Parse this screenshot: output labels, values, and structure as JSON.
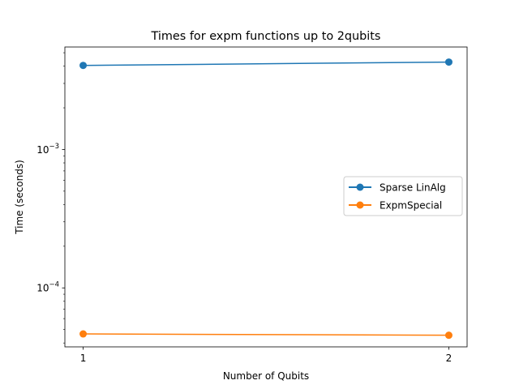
{
  "chart_data": {
    "type": "line",
    "title": "Times for expm functions up to 2qubits",
    "xlabel": "Number of Qubits",
    "ylabel": "Time (seconds)",
    "x": [
      1,
      2
    ],
    "x_ticks": [
      1,
      2
    ],
    "x_tick_labels": [
      "1",
      "2"
    ],
    "xlim": [
      0.95,
      2.05
    ],
    "y_scale": "log",
    "ylim": [
      3.75e-05,
      0.0055
    ],
    "y_ticks": [
      0.0001,
      0.001
    ],
    "y_tick_labels": [
      {
        "base": "10",
        "exp": "−4"
      },
      {
        "base": "10",
        "exp": "−3"
      }
    ],
    "grid": false,
    "legend_position": "center-right",
    "series": [
      {
        "name": "Sparse LinAlg",
        "values": [
          0.00405,
          0.00428
        ],
        "color": "#1f77b4"
      },
      {
        "name": "ExpmSpecial",
        "values": [
          4.65e-05,
          4.55e-05
        ],
        "color": "#ff7f0e"
      }
    ]
  }
}
